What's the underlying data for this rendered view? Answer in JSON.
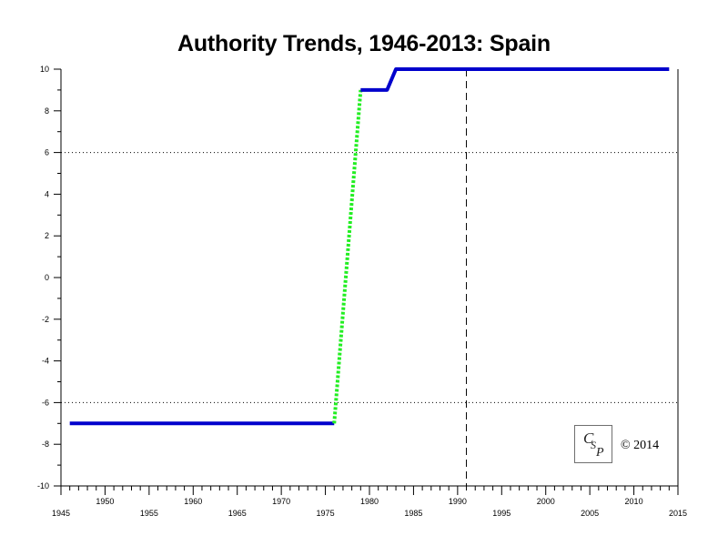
{
  "chart_data": {
    "type": "line",
    "title": "Authority Trends, 1946-2013: Spain",
    "xlabel": "",
    "ylabel": "",
    "xlim": [
      1945,
      2015
    ],
    "ylim": [
      -10,
      10
    ],
    "x_major_ticks": [
      1945,
      1950,
      1955,
      1960,
      1965,
      1970,
      1975,
      1980,
      1985,
      1990,
      1995,
      2000,
      2005,
      2010,
      2015
    ],
    "y_major_ticks": [
      -10,
      -8,
      -6,
      -4,
      -2,
      0,
      2,
      4,
      6,
      8,
      10
    ],
    "reference_lines": [
      {
        "axis": "y",
        "value": 6,
        "style": "dotted"
      },
      {
        "axis": "y",
        "value": -6,
        "style": "dotted"
      },
      {
        "axis": "x",
        "value": 1991,
        "style": "dashed"
      }
    ],
    "grid": false,
    "series": [
      {
        "segment": "polity-early",
        "color": "#0000cc",
        "style": "solid",
        "x": [
          1946,
          1976
        ],
        "y": [
          -7,
          -7
        ]
      },
      {
        "segment": "transition",
        "color": "#22ee22",
        "style": "dotted",
        "x": [
          1976,
          1979
        ],
        "y": [
          -7,
          9
        ]
      },
      {
        "segment": "polity-late",
        "color": "#0000cc",
        "style": "solid",
        "x": [
          1979,
          1982,
          1983,
          2014
        ],
        "y": [
          9,
          9,
          10,
          10
        ]
      }
    ]
  },
  "footer": {
    "logo_text": "CSP",
    "copyright": "© 2014"
  }
}
